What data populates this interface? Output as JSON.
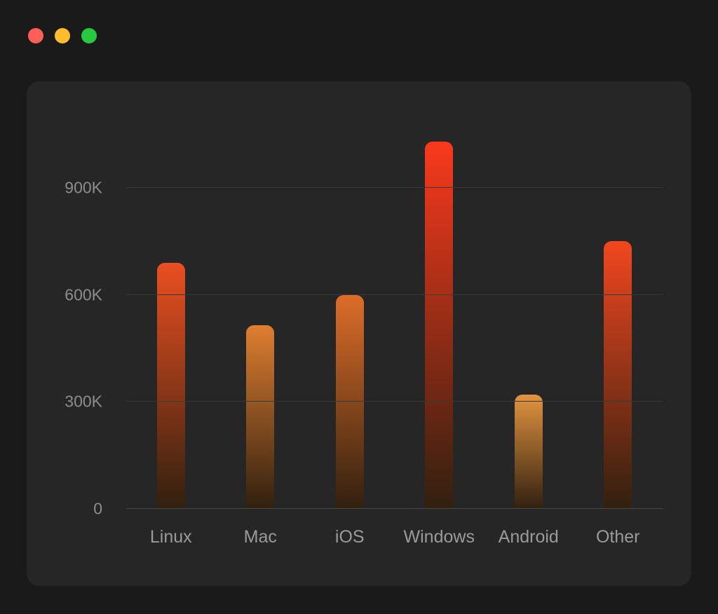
{
  "window": {
    "traffic_lights": [
      {
        "name": "close",
        "color": "#ff5f57"
      },
      {
        "name": "minimize",
        "color": "#febc2e"
      },
      {
        "name": "zoom",
        "color": "#28c840"
      }
    ]
  },
  "chart_data": {
    "type": "bar",
    "categories": [
      "Linux",
      "Mac",
      "iOS",
      "Windows",
      "Android",
      "Other"
    ],
    "values": [
      690000,
      515000,
      600000,
      1030000,
      320000,
      750000
    ],
    "bar_colors_top": [
      "#ea4f21",
      "#de7e31",
      "#dd6d29",
      "#fa391d",
      "#e29440",
      "#f1471f"
    ],
    "bar_color_bottom": "#31200f",
    "title": "",
    "xlabel": "",
    "ylabel": "",
    "ylim": [
      0,
      1100000
    ],
    "yticks": [
      {
        "value": 0,
        "label": "0"
      },
      {
        "value": 300000,
        "label": "300K"
      },
      {
        "value": 600000,
        "label": "600K"
      },
      {
        "value": 900000,
        "label": "900K"
      }
    ],
    "grid": true,
    "legend": false,
    "colors": {
      "page_background": "#1a1a1a",
      "panel_background": "#262626",
      "gridline": "#3a3a3a",
      "axis_text": "#8d8d8d",
      "category_text": "#9a9a9a"
    }
  }
}
